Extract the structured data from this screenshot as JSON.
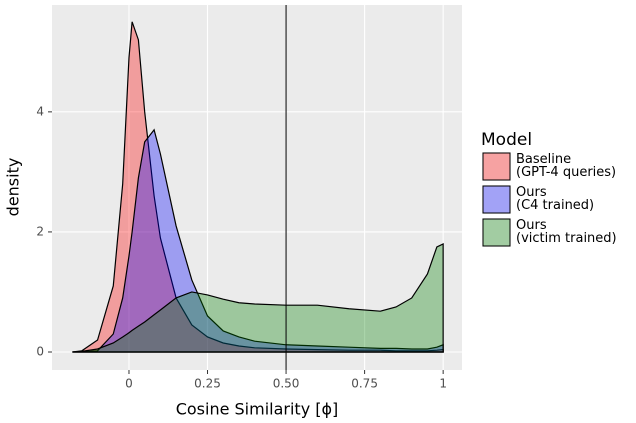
{
  "chart_data": {
    "type": "density",
    "x_label": "Cosine Similarity [ϕ]",
    "y_label": "density",
    "legend_title": "Model",
    "legend_position": "right",
    "alpha": 0.33,
    "vline": 0.5,
    "xlim": [
      -0.245,
      1.06
    ],
    "ylim": [
      -0.3,
      5.78
    ],
    "xticks": [
      0,
      0.25,
      {
        "value": 0.5,
        "label": "0.50"
      },
      0.75,
      1
    ],
    "yticks": [
      0,
      2,
      4
    ],
    "grid": true,
    "x": [
      -0.18,
      -0.15,
      -0.1,
      -0.05,
      -0.02,
      0,
      0.01,
      0.03,
      0.05,
      0.08,
      0.1,
      0.15,
      0.2,
      0.25,
      0.3,
      0.35,
      0.4,
      0.5,
      0.6,
      0.7,
      0.8,
      0.85,
      0.9,
      0.95,
      0.98,
      1.0
    ],
    "series": [
      {
        "name": "Baseline\n(GPT-4 queries)",
        "color": "#ff0000",
        "values": [
          0,
          0.02,
          0.2,
          1.1,
          2.8,
          4.9,
          5.5,
          5.2,
          4.0,
          2.6,
          1.9,
          0.9,
          0.45,
          0.25,
          0.15,
          0.1,
          0.07,
          0.05,
          0.04,
          0.03,
          0.03,
          0.02,
          0.02,
          0.02,
          0.03,
          0.04
        ]
      },
      {
        "name": "Ours\n(C4 trained)",
        "color": "#0000ff",
        "values": [
          0,
          0,
          0.02,
          0.3,
          0.9,
          1.6,
          2.0,
          2.9,
          3.5,
          3.7,
          3.3,
          2.1,
          1.2,
          0.6,
          0.35,
          0.25,
          0.18,
          0.12,
          0.1,
          0.08,
          0.06,
          0.06,
          0.05,
          0.05,
          0.08,
          0.12
        ]
      },
      {
        "name": "Ours\n(victim trained)",
        "color": "#008000",
        "values": [
          0,
          0.01,
          0.05,
          0.15,
          0.25,
          0.32,
          0.36,
          0.43,
          0.5,
          0.62,
          0.7,
          0.9,
          1.0,
          0.95,
          0.88,
          0.82,
          0.8,
          0.78,
          0.78,
          0.72,
          0.68,
          0.75,
          0.9,
          1.3,
          1.75,
          1.8
        ]
      }
    ]
  }
}
